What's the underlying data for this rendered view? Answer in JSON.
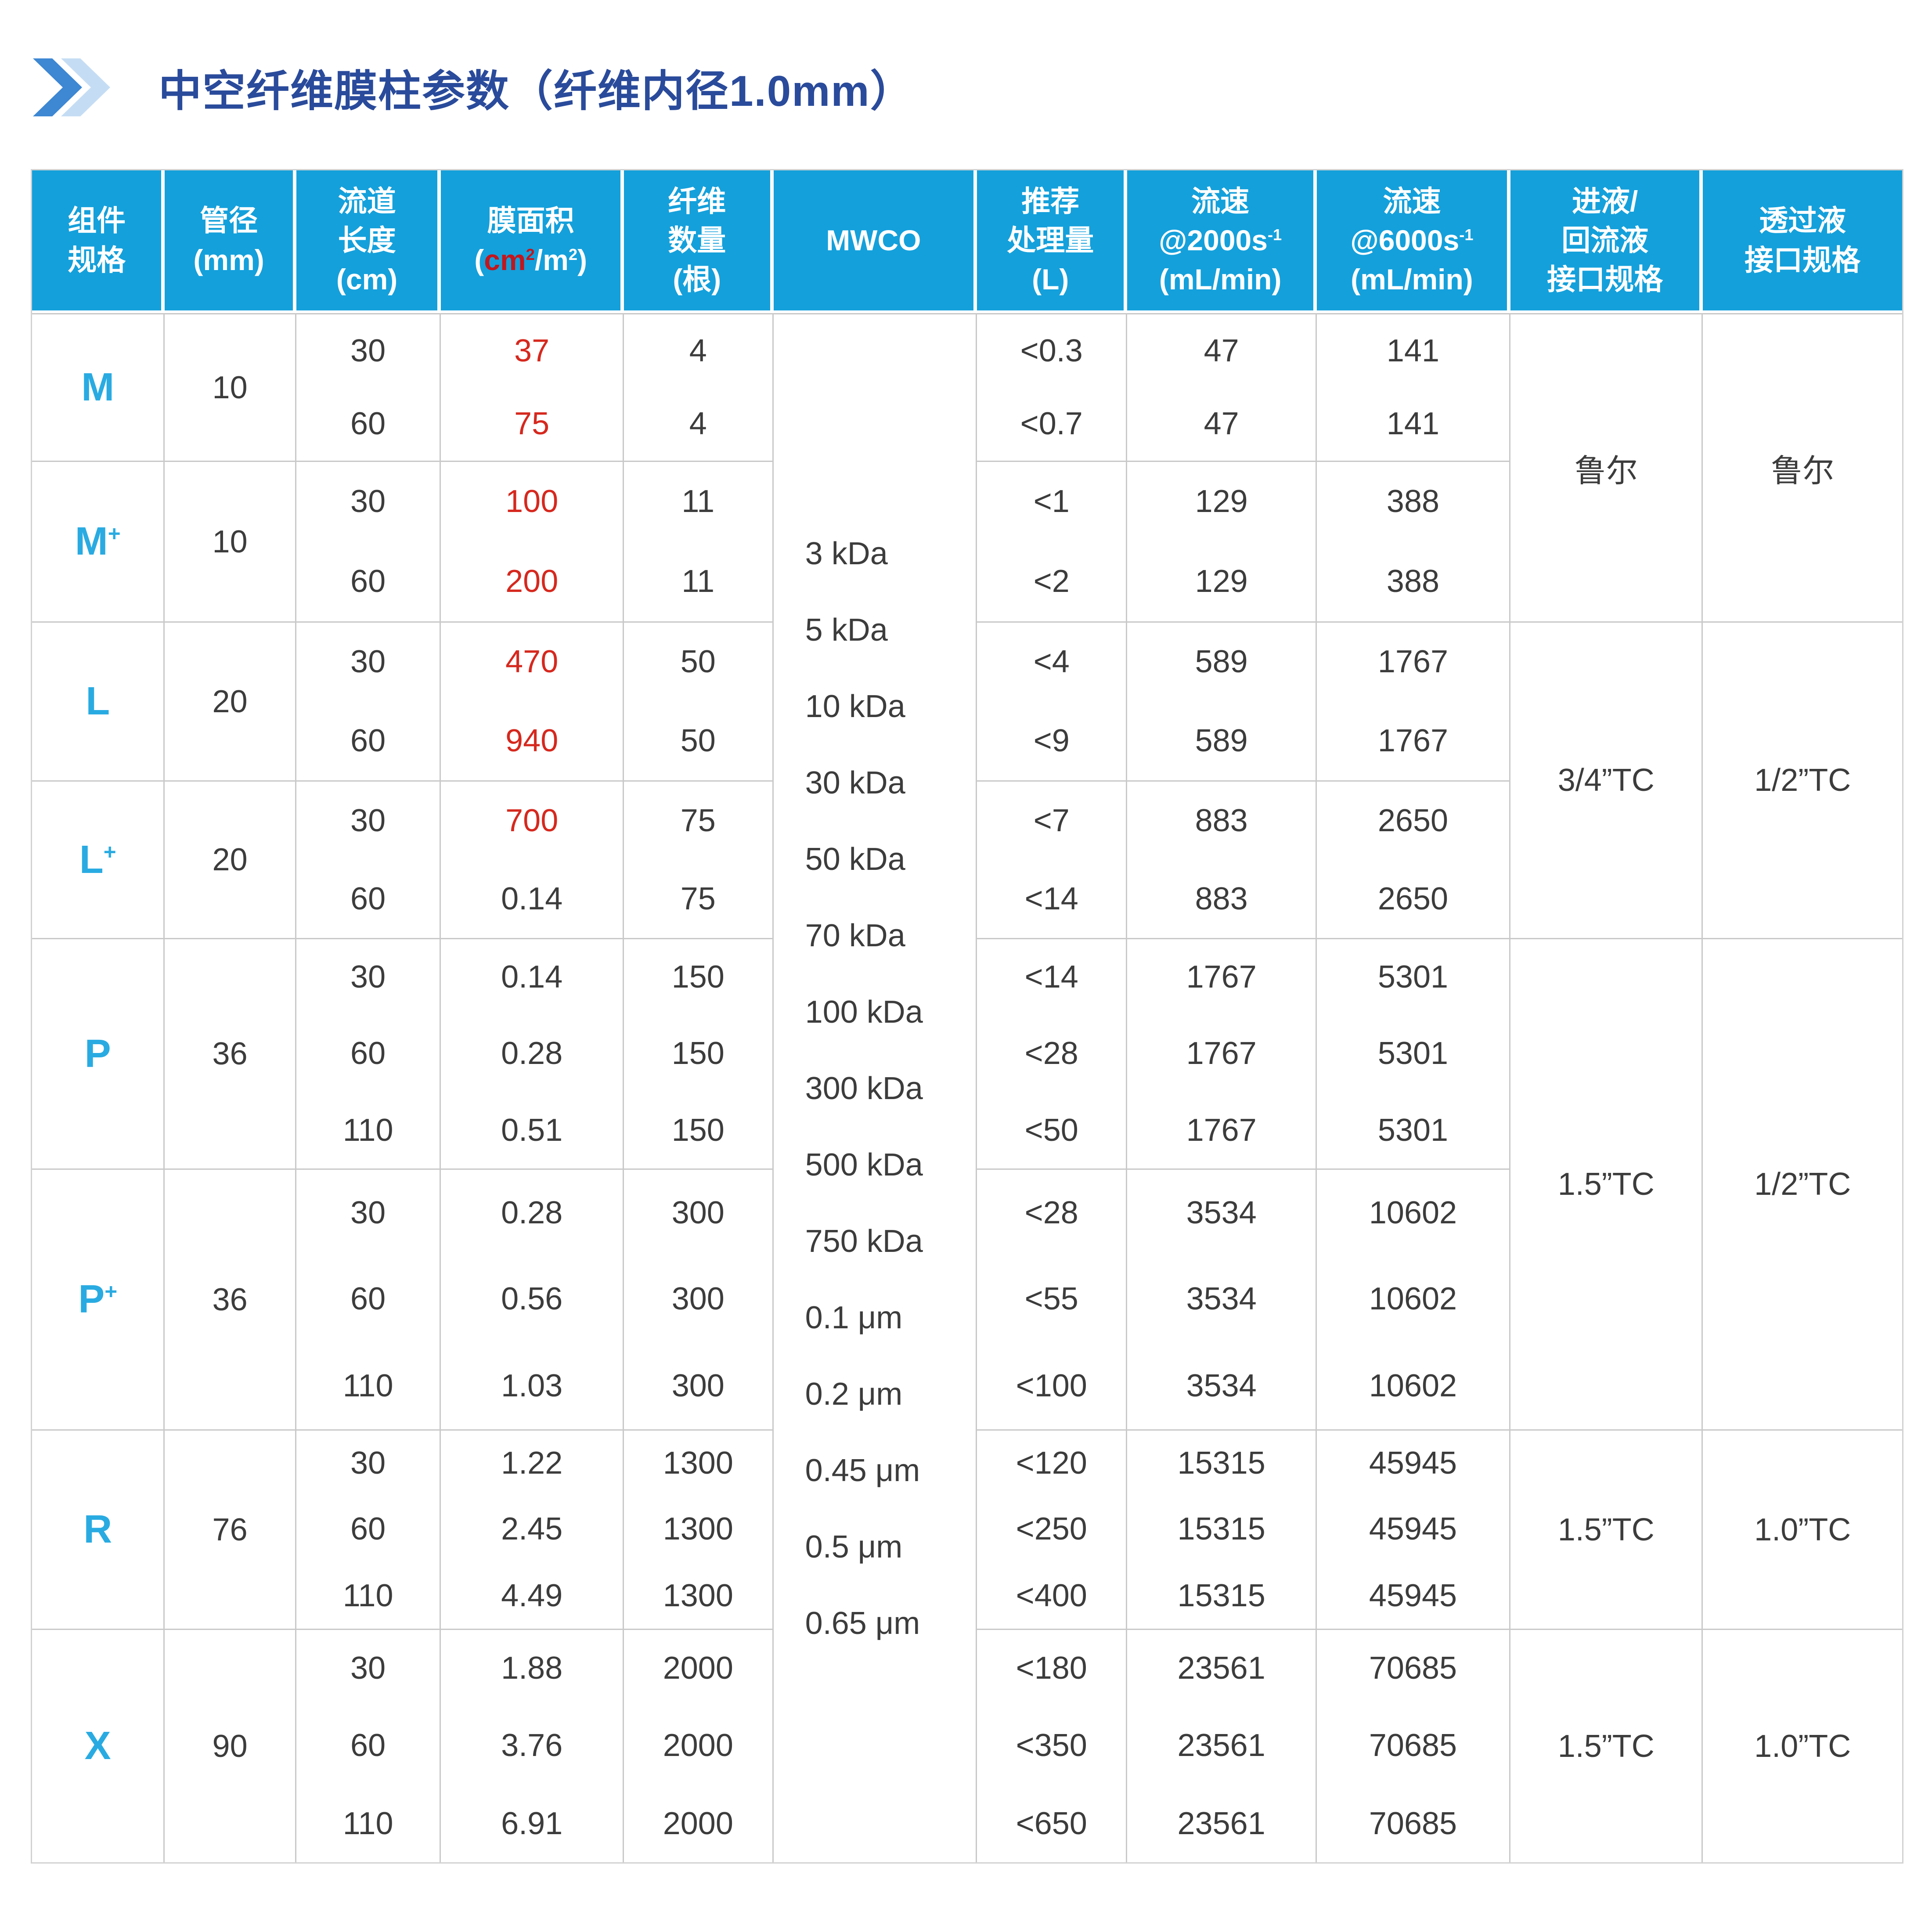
{
  "title": {
    "text": "中空纤维膜柱参数（纤维内径1.0mm）"
  },
  "colors": {
    "header_bg": "#14A0DB",
    "header_text": "#FFFFFF",
    "accent_blue": "#29ABE2",
    "title_blue": "#2A4B9B",
    "red": "#D6281E",
    "header_red": "#C3161C",
    "body_text": "#3C3C3C",
    "grid_line": "#C9C9C9",
    "chevron_front": "#3D87D3",
    "chevron_back": "#C5DDF4"
  },
  "icons": {
    "chevron": "double-chevron-right-icon"
  },
  "table": {
    "header": [
      {
        "name": "module-spec",
        "lines": [
          [
            "组件"
          ],
          [
            "规格"
          ]
        ]
      },
      {
        "name": "tube-diameter",
        "lines": [
          [
            "管径"
          ],
          [
            "(mm)"
          ]
        ]
      },
      {
        "name": "channel-length",
        "lines": [
          [
            "流道"
          ],
          [
            "长度"
          ],
          [
            "(cm)"
          ]
        ]
      },
      {
        "name": "membrane-area",
        "lines": [
          [
            "膜面积"
          ],
          [
            {
              "t": "("
            },
            {
              "t": "cm",
              "red": true
            },
            {
              "t": "2",
              "red": true,
              "sup": true
            },
            {
              "t": "/m"
            },
            {
              "t": "2",
              "sup": true
            },
            {
              "t": ")"
            }
          ]
        ]
      },
      {
        "name": "fiber-count",
        "lines": [
          [
            "纤维"
          ],
          [
            "数量"
          ],
          [
            "(根)"
          ]
        ]
      },
      {
        "name": "mwco",
        "lines": [
          [
            "MWCO"
          ]
        ]
      },
      {
        "name": "recommended-volume",
        "lines": [
          [
            "推荐"
          ],
          [
            "处理量"
          ],
          [
            "(L)"
          ]
        ]
      },
      {
        "name": "flow-2000",
        "lines": [
          [
            "流速"
          ],
          [
            {
              "t": "@2000s"
            },
            {
              "t": "-1",
              "sup": true
            }
          ],
          [
            "(mL/min)"
          ]
        ]
      },
      {
        "name": "flow-6000",
        "lines": [
          [
            "流速"
          ],
          [
            {
              "t": "@6000s"
            },
            {
              "t": "-1",
              "sup": true
            }
          ],
          [
            "(mL/min)"
          ]
        ]
      },
      {
        "name": "feed-connector",
        "lines": [
          [
            "进液/"
          ],
          [
            "回流液"
          ],
          [
            "接口规格"
          ]
        ]
      },
      {
        "name": "permeate-connector",
        "lines": [
          [
            "透过液"
          ],
          [
            "接口规格"
          ]
        ]
      }
    ],
    "mwco_values": [
      "3 kDa",
      "5 kDa",
      "10 kDa",
      "30 kDa",
      "50 kDa",
      "70 kDa",
      "100 kDa",
      "300 kDa",
      "500 kDa",
      "750 kDa",
      "0.1 μm",
      "0.2 μm",
      "0.45 μm",
      "0.5 μm",
      "0.65 μm"
    ],
    "groups": [
      {
        "label": "M",
        "label_sup": "",
        "diameter": "10",
        "conn_feed": "鲁尔",
        "conn_permeate": "鲁尔",
        "conn_rows": 4,
        "rows": [
          {
            "length": "30",
            "area": "37",
            "area_red": true,
            "fibers": "4",
            "volume": "<0.3",
            "flow_2000": "47",
            "flow_6000": "141"
          },
          {
            "length": "60",
            "area": "75",
            "area_red": true,
            "fibers": "4",
            "volume": "<0.7",
            "flow_2000": "47",
            "flow_6000": "141"
          }
        ]
      },
      {
        "label": "M",
        "label_sup": "+",
        "diameter": "10",
        "rows": [
          {
            "length": "30",
            "area": "100",
            "area_red": true,
            "fibers": "11",
            "volume": "<1",
            "flow_2000": "129",
            "flow_6000": "388"
          },
          {
            "length": "60",
            "area": "200",
            "area_red": true,
            "fibers": "11",
            "volume": "<2",
            "flow_2000": "129",
            "flow_6000": "388"
          }
        ]
      },
      {
        "label": "L",
        "label_sup": "",
        "diameter": "20",
        "conn_feed": "3/4”TC",
        "conn_permeate": "1/2”TC",
        "conn_rows": 4,
        "rows": [
          {
            "length": "30",
            "area": "470",
            "area_red": true,
            "fibers": "50",
            "volume": "<4",
            "flow_2000": "589",
            "flow_6000": "1767"
          },
          {
            "length": "60",
            "area": "940",
            "area_red": true,
            "fibers": "50",
            "volume": "<9",
            "flow_2000": "589",
            "flow_6000": "1767"
          }
        ]
      },
      {
        "label": "L",
        "label_sup": "+",
        "diameter": "20",
        "rows": [
          {
            "length": "30",
            "area": "700",
            "area_red": true,
            "fibers": "75",
            "volume": "<7",
            "flow_2000": "883",
            "flow_6000": "2650"
          },
          {
            "length": "60",
            "area": "0.14",
            "area_red": false,
            "fibers": "75",
            "volume": "<14",
            "flow_2000": "883",
            "flow_6000": "2650"
          }
        ]
      },
      {
        "label": "P",
        "label_sup": "",
        "diameter": "36",
        "conn_feed": "1.5”TC",
        "conn_permeate": "1/2”TC",
        "conn_rows": 6,
        "rows": [
          {
            "length": "30",
            "area": "0.14",
            "area_red": false,
            "fibers": "150",
            "volume": "<14",
            "flow_2000": "1767",
            "flow_6000": "5301"
          },
          {
            "length": "60",
            "area": "0.28",
            "area_red": false,
            "fibers": "150",
            "volume": "<28",
            "flow_2000": "1767",
            "flow_6000": "5301"
          },
          {
            "length": "110",
            "area": "0.51",
            "area_red": false,
            "fibers": "150",
            "volume": "<50",
            "flow_2000": "1767",
            "flow_6000": "5301"
          }
        ]
      },
      {
        "label": "P",
        "label_sup": "+",
        "diameter": "36",
        "rows": [
          {
            "length": "30",
            "area": "0.28",
            "area_red": false,
            "fibers": "300",
            "volume": "<28",
            "flow_2000": "3534",
            "flow_6000": "10602"
          },
          {
            "length": "60",
            "area": "0.56",
            "area_red": false,
            "fibers": "300",
            "volume": "<55",
            "flow_2000": "3534",
            "flow_6000": "10602"
          },
          {
            "length": "110",
            "area": "1.03",
            "area_red": false,
            "fibers": "300",
            "volume": "<100",
            "flow_2000": "3534",
            "flow_6000": "10602"
          }
        ]
      },
      {
        "label": "R",
        "label_sup": "",
        "diameter": "76",
        "conn_feed": "1.5”TC",
        "conn_permeate": "1.0”TC",
        "conn_rows": 3,
        "rows": [
          {
            "length": "30",
            "area": "1.22",
            "area_red": false,
            "fibers": "1300",
            "volume": "<120",
            "flow_2000": "15315",
            "flow_6000": "45945"
          },
          {
            "length": "60",
            "area": "2.45",
            "area_red": false,
            "fibers": "1300",
            "volume": "<250",
            "flow_2000": "15315",
            "flow_6000": "45945"
          },
          {
            "length": "110",
            "area": "4.49",
            "area_red": false,
            "fibers": "1300",
            "volume": "<400",
            "flow_2000": "15315",
            "flow_6000": "45945"
          }
        ]
      },
      {
        "label": "X",
        "label_sup": "",
        "diameter": "90",
        "conn_feed": "1.5”TC",
        "conn_permeate": "1.0”TC",
        "conn_rows": 3,
        "rows": [
          {
            "length": "30",
            "area": "1.88",
            "area_red": false,
            "fibers": "2000",
            "volume": "<180",
            "flow_2000": "23561",
            "flow_6000": "70685"
          },
          {
            "length": "60",
            "area": "3.76",
            "area_red": false,
            "fibers": "2000",
            "volume": "<350",
            "flow_2000": "23561",
            "flow_6000": "70685"
          },
          {
            "length": "110",
            "area": "6.91",
            "area_red": false,
            "fibers": "2000",
            "volume": "<650",
            "flow_2000": "23561",
            "flow_6000": "70685"
          }
        ]
      }
    ]
  }
}
